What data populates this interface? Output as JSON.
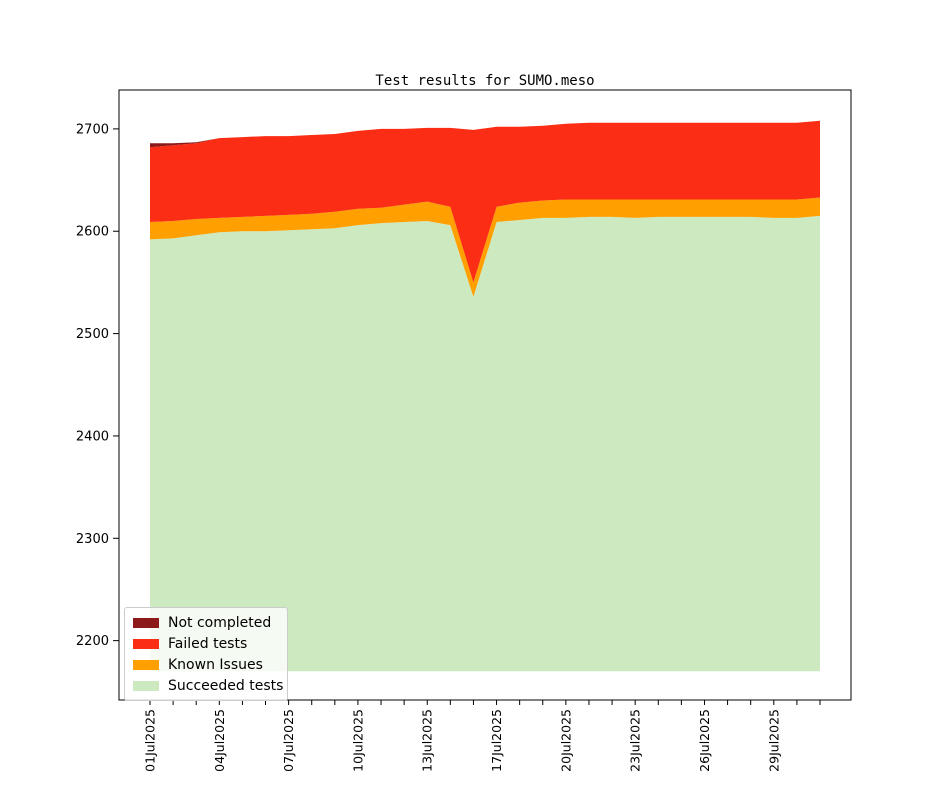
{
  "figure": {
    "background": "#ffffff",
    "axis_color": "#000000"
  },
  "chart_data": {
    "type": "area",
    "stacked": true,
    "title": "Test results for SUMO.meso",
    "xlabel": "",
    "ylabel": "",
    "grid": false,
    "legend_position": "lower left",
    "ylim": [
      2142,
      2738
    ],
    "y_ticks": [
      2200,
      2300,
      2400,
      2500,
      2600,
      2700
    ],
    "baseline": 2170,
    "x_dates": [
      "01Jul2025",
      "02Jul2025",
      "03Jul2025",
      "04Jul2025",
      "05Jul2025",
      "06Jul2025",
      "07Jul2025",
      "08Jul2025",
      "09Jul2025",
      "10Jul2025",
      "11Jul2025",
      "12Jul2025",
      "13Jul2025",
      "14Jul2025",
      "15Jul2025",
      "17Jul2025",
      "18Jul2025",
      "19Jul2025",
      "20Jul2025",
      "21Jul2025",
      "22Jul2025",
      "23Jul2025",
      "24Jul2025",
      "25Jul2025",
      "26Jul2025",
      "27Jul2025",
      "28Jul2025",
      "29Jul2025",
      "30Jul2025",
      "31Jul2025"
    ],
    "x_tick_indices": [
      0,
      3,
      6,
      9,
      12,
      15,
      18,
      21,
      24,
      27
    ],
    "x_tick_labels": [
      "01Jul2025",
      "04Jul2025",
      "07Jul2025",
      "10Jul2025",
      "13Jul2025",
      "17Jul2025",
      "20Jul2025",
      "23Jul2025",
      "26Jul2025",
      "29Jul2025"
    ],
    "series": [
      {
        "name": "Succeeded tests",
        "color": "#cde9c0",
        "cumulative_top": [
          2592,
          2593,
          2596,
          2599,
          2600,
          2600,
          2601,
          2602,
          2603,
          2606,
          2608,
          2609,
          2610,
          2606,
          2536,
          2609,
          2611,
          2613,
          2613,
          2614,
          2614,
          2613,
          2614,
          2614,
          2614,
          2614,
          2614,
          2613,
          2613,
          2615
        ]
      },
      {
        "name": "Known Issues",
        "color": "#ff9f00",
        "cumulative_top": [
          2609,
          2610,
          2612,
          2613,
          2614,
          2615,
          2616,
          2617,
          2619,
          2622,
          2623,
          2626,
          2629,
          2624,
          2550,
          2624,
          2628,
          2630,
          2631,
          2631,
          2631,
          2631,
          2631,
          2631,
          2631,
          2631,
          2631,
          2631,
          2631,
          2633
        ]
      },
      {
        "name": "Failed tests",
        "color": "#fb2d14",
        "cumulative_top": [
          2682,
          2684,
          2686,
          2691,
          2692,
          2693,
          2693,
          2694,
          2695,
          2698,
          2700,
          2700,
          2701,
          2701,
          2699,
          2702,
          2702,
          2703,
          2705,
          2706,
          2706,
          2706,
          2706,
          2706,
          2706,
          2706,
          2706,
          2706,
          2706,
          2708
        ]
      },
      {
        "name": "Not completed",
        "color": "#8c1a1a",
        "cumulative_top": [
          2686,
          2686,
          2687,
          2691,
          2692,
          2693,
          2693,
          2694,
          2695,
          2698,
          2700,
          2700,
          2701,
          2701,
          2699,
          2702,
          2702,
          2703,
          2705,
          2706,
          2706,
          2706,
          2706,
          2706,
          2706,
          2706,
          2706,
          2706,
          2706,
          2708
        ]
      }
    ],
    "legend_items": [
      {
        "label": "Not completed",
        "color": "#8c1a1a"
      },
      {
        "label": "Failed tests",
        "color": "#fb2d14"
      },
      {
        "label": "Known Issues",
        "color": "#ff9f00"
      },
      {
        "label": "Succeeded tests",
        "color": "#cde9c0"
      }
    ]
  }
}
